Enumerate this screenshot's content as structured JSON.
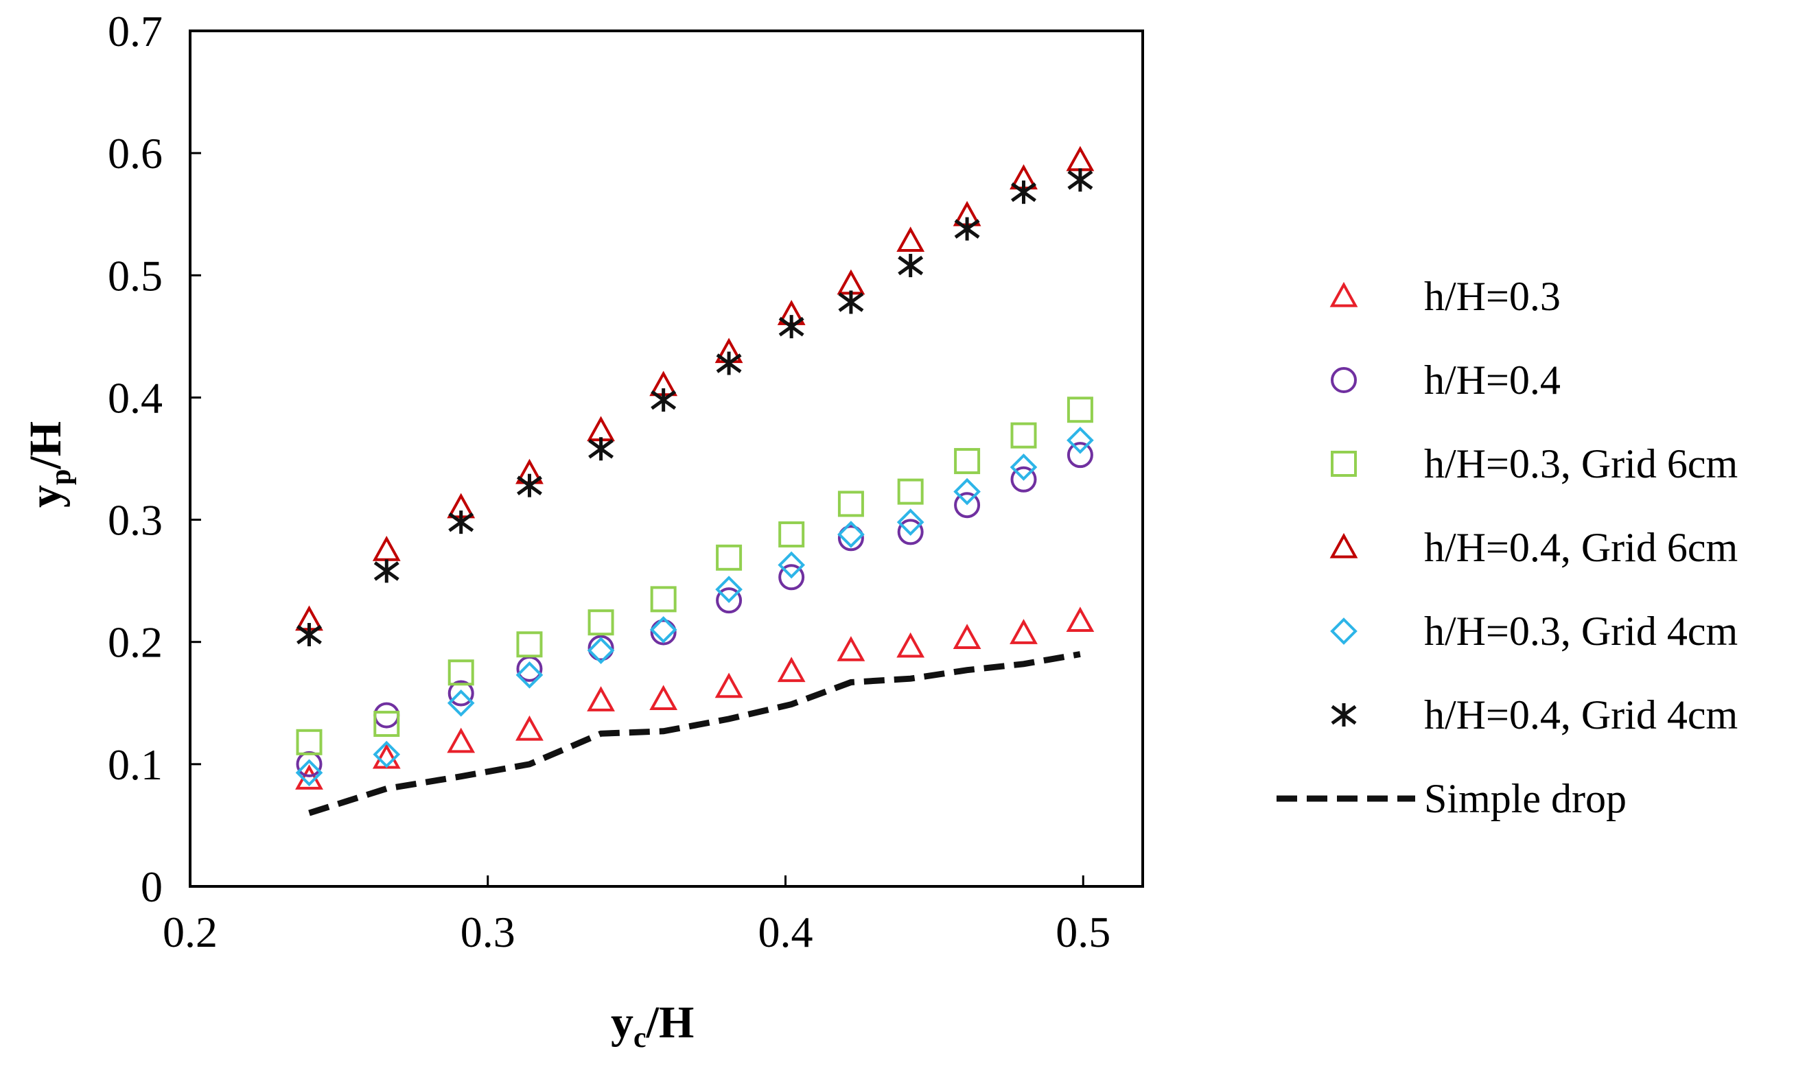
{
  "chart_data": {
    "type": "scatter",
    "title": "",
    "xlabel": {
      "main": "y",
      "sub": "c",
      "rest": "/H"
    },
    "ylabel": {
      "main": "y",
      "sub": "p",
      "rest": "/H"
    },
    "xlim": [
      0.2,
      0.52
    ],
    "ylim": [
      0,
      0.7
    ],
    "xticks": [
      0.2,
      0.3,
      0.4,
      0.5
    ],
    "xtick_labels": [
      "0.2",
      "0.3",
      "0.4",
      "0.5"
    ],
    "yticks": [
      0,
      0.1,
      0.2,
      0.3,
      0.4,
      0.5,
      0.6,
      0.7
    ],
    "ytick_labels": [
      "0",
      "0.1",
      "0.2",
      "0.3",
      "0.4",
      "0.5",
      "0.6",
      "0.7"
    ],
    "grid": false,
    "legend_position": "right",
    "x": [
      0.24,
      0.266,
      0.291,
      0.314,
      0.338,
      0.359,
      0.381,
      0.402,
      0.422,
      0.442,
      0.461,
      0.48,
      0.499
    ],
    "series": [
      {
        "name": "h/H=0.3",
        "marker": "triangle",
        "color": "#e8202a",
        "values": [
          0.088,
          0.105,
          0.118,
          0.128,
          0.152,
          0.153,
          0.163,
          0.176,
          0.193,
          0.196,
          0.203,
          0.207,
          0.217
        ]
      },
      {
        "name": "h/H=0.4",
        "marker": "circle",
        "color": "#7030a0",
        "values": [
          0.1,
          0.14,
          0.158,
          0.178,
          0.195,
          0.208,
          0.234,
          0.253,
          0.285,
          0.29,
          0.312,
          0.333,
          0.353
        ]
      },
      {
        "name": "h/H=0.3, Grid 6cm",
        "marker": "square",
        "color": "#92d050",
        "values": [
          0.118,
          0.133,
          0.175,
          0.198,
          0.216,
          0.235,
          0.269,
          0.288,
          0.313,
          0.323,
          0.348,
          0.369,
          0.39
        ]
      },
      {
        "name": "h/H=0.4, Grid 6cm",
        "marker": "triangle",
        "color": "#c00000",
        "values": [
          0.218,
          0.275,
          0.31,
          0.338,
          0.373,
          0.41,
          0.437,
          0.468,
          0.493,
          0.528,
          0.549,
          0.579,
          0.594
        ]
      },
      {
        "name": "h/H=0.3, Grid 4cm",
        "marker": "diamond",
        "color": "#2db5e8",
        "values": [
          0.093,
          0.108,
          0.15,
          0.173,
          0.193,
          0.21,
          0.243,
          0.263,
          0.288,
          0.298,
          0.323,
          0.343,
          0.365
        ]
      },
      {
        "name": "h/H=0.4, Grid 4cm",
        "marker": "asterisk",
        "color": "#111111",
        "values": [
          0.206,
          0.258,
          0.298,
          0.328,
          0.358,
          0.398,
          0.428,
          0.458,
          0.478,
          0.508,
          0.538,
          0.568,
          0.578
        ]
      },
      {
        "name": "Simple drop",
        "marker": "dashed-line",
        "color": "#111111",
        "values": [
          0.06,
          0.08,
          0.09,
          0.1,
          0.125,
          0.127,
          0.137,
          0.149,
          0.167,
          0.17,
          0.177,
          0.182,
          0.19
        ]
      }
    ]
  }
}
